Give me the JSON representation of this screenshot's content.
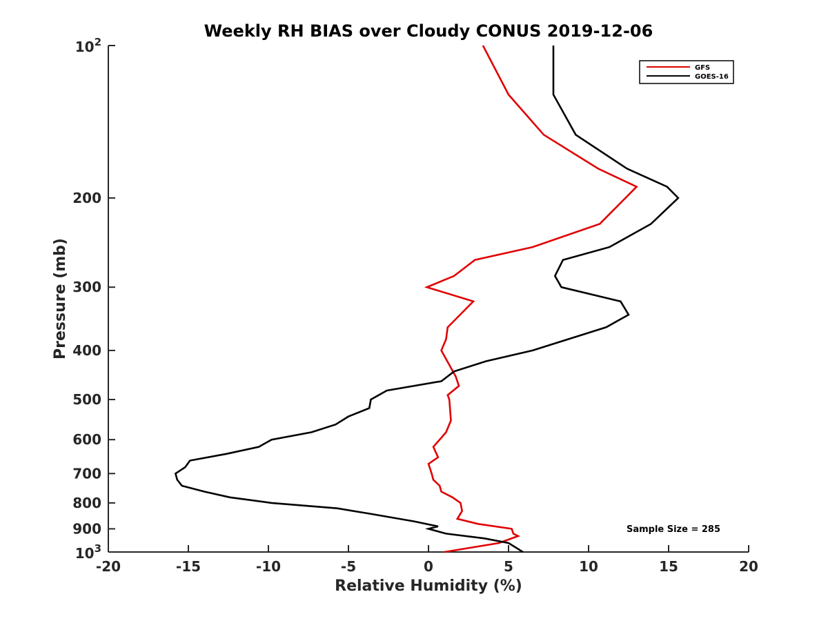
{
  "chart_data": {
    "type": "line",
    "title": "Weekly RH BIAS over Cloudy CONUS 2019-12-06",
    "xlabel": "Relative Humidity (%)",
    "ylabel": "Pressure (mb)",
    "xlim": [
      -20,
      20
    ],
    "ylim": [
      1000,
      100
    ],
    "y_scale": "log",
    "y_reversed": true,
    "x_ticks": [
      -20,
      -15,
      -10,
      -5,
      0,
      5,
      10,
      15,
      20
    ],
    "y_ticks": [
      100,
      200,
      300,
      400,
      500,
      600,
      700,
      800,
      900,
      1000
    ],
    "y_tick_labels": [
      "",
      "200",
      "300",
      "400",
      "500",
      "600",
      "700",
      "800",
      "900",
      ""
    ],
    "y_tick_base": "10",
    "y_tick_exp_top": "2",
    "y_tick_exp_bottom": "3",
    "grid": false,
    "legend_position": "top-right",
    "annotation": "Sample Size = 285",
    "series": [
      {
        "name": "GFS",
        "color": "#e00000",
        "points": [
          [
            3.4,
            100
          ],
          [
            5.0,
            125
          ],
          [
            7.2,
            150
          ],
          [
            10.6,
            175
          ],
          [
            13.0,
            190
          ],
          [
            12.3,
            200
          ],
          [
            10.7,
            225
          ],
          [
            6.5,
            250
          ],
          [
            2.9,
            265
          ],
          [
            1.6,
            285
          ],
          [
            -0.1,
            300
          ],
          [
            2.8,
            320
          ],
          [
            1.2,
            360
          ],
          [
            1.1,
            380
          ],
          [
            0.8,
            400
          ],
          [
            1.7,
            450
          ],
          [
            1.9,
            470
          ],
          [
            1.2,
            490
          ],
          [
            1.3,
            500
          ],
          [
            1.4,
            550
          ],
          [
            1.1,
            580
          ],
          [
            0.7,
            600
          ],
          [
            0.3,
            620
          ],
          [
            0.6,
            650
          ],
          [
            0.0,
            670
          ],
          [
            0.2,
            700
          ],
          [
            0.3,
            720
          ],
          [
            0.7,
            740
          ],
          [
            0.8,
            760
          ],
          [
            1.5,
            780
          ],
          [
            2.0,
            800
          ],
          [
            2.1,
            830
          ],
          [
            1.8,
            860
          ],
          [
            3.1,
            880
          ],
          [
            5.2,
            900
          ],
          [
            5.3,
            920
          ],
          [
            5.6,
            930
          ],
          [
            4.4,
            960
          ],
          [
            1.0,
            1000
          ]
        ]
      },
      {
        "name": "GOES-16",
        "color": "#000000",
        "points": [
          [
            7.8,
            100
          ],
          [
            7.8,
            125
          ],
          [
            9.2,
            150
          ],
          [
            12.4,
            175
          ],
          [
            14.9,
            190
          ],
          [
            15.6,
            200
          ],
          [
            13.9,
            225
          ],
          [
            11.3,
            250
          ],
          [
            8.4,
            265
          ],
          [
            7.9,
            285
          ],
          [
            8.3,
            300
          ],
          [
            12.0,
            320
          ],
          [
            12.5,
            340
          ],
          [
            11.1,
            360
          ],
          [
            6.5,
            400
          ],
          [
            3.6,
            420
          ],
          [
            1.6,
            440
          ],
          [
            0.8,
            460
          ],
          [
            -2.6,
            480
          ],
          [
            -3.6,
            500
          ],
          [
            -3.7,
            520
          ],
          [
            -5.0,
            540
          ],
          [
            -5.8,
            560
          ],
          [
            -7.3,
            580
          ],
          [
            -9.8,
            600
          ],
          [
            -10.6,
            620
          ],
          [
            -12.6,
            640
          ],
          [
            -14.9,
            660
          ],
          [
            -15.2,
            680
          ],
          [
            -15.8,
            700
          ],
          [
            -15.7,
            720
          ],
          [
            -15.4,
            740
          ],
          [
            -14.0,
            760
          ],
          [
            -12.4,
            780
          ],
          [
            -9.8,
            800
          ],
          [
            -5.7,
            820
          ],
          [
            -3.7,
            840
          ],
          [
            -0.9,
            870
          ],
          [
            0.6,
            890
          ],
          [
            0.0,
            900
          ],
          [
            1.1,
            920
          ],
          [
            3.5,
            940
          ],
          [
            5.0,
            960
          ],
          [
            5.9,
            1000
          ]
        ]
      }
    ]
  }
}
